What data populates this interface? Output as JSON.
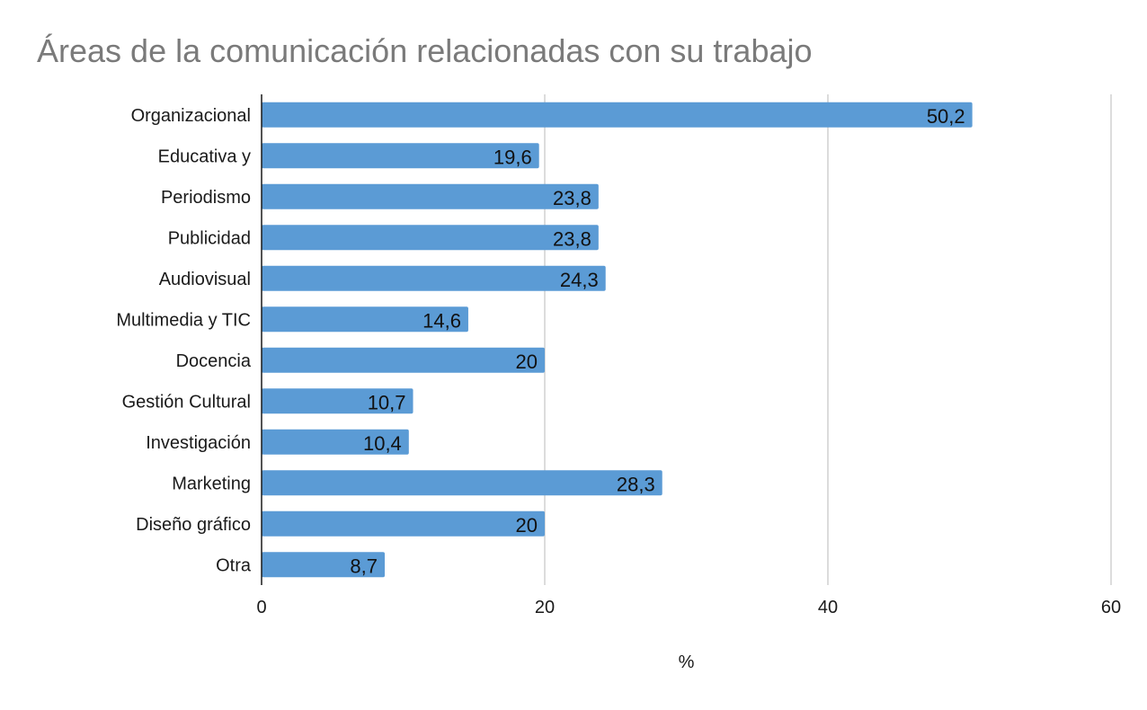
{
  "chart_data": {
    "type": "bar",
    "orientation": "horizontal",
    "title": "Áreas de la comunicación relacionadas con su trabajo",
    "xlabel": "%",
    "ylabel": "",
    "categories": [
      "Organizacional",
      "Educativa y",
      "Periodismo",
      "Publicidad",
      "Audiovisual",
      "Multimedia y TIC",
      "Docencia",
      "Gestión Cultural",
      "Investigación",
      "Marketing",
      "Diseño gráfico",
      "Otra"
    ],
    "values": [
      50.2,
      19.6,
      23.8,
      23.8,
      24.3,
      14.6,
      20,
      10.7,
      10.4,
      28.3,
      20,
      8.7
    ],
    "data_labels": [
      "50,2",
      "19,6",
      "23,8",
      "23,8",
      "24,3",
      "14,6",
      "20",
      "10,7",
      "10,4",
      "28,3",
      "20",
      "8,7"
    ],
    "xlim": [
      0,
      60
    ],
    "x_ticks": [
      0,
      20,
      40,
      60
    ],
    "x_tick_labels": [
      "0",
      "20",
      "40",
      "60"
    ],
    "grid": true,
    "legend": "none",
    "colors": {
      "bar": "#5b9bd5",
      "grid": "#d0d0d0",
      "axis": "#1a1a1a",
      "title": "#7a7a7a"
    }
  }
}
